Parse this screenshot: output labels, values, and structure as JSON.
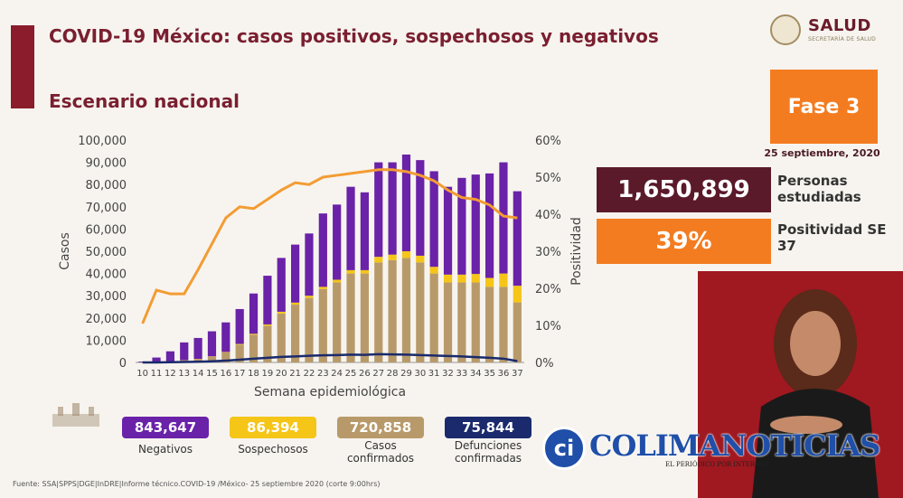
{
  "header": {
    "title": "COVID-19 México: casos positivos, sospechosos y negativos",
    "subtitle": "Escenario nacional"
  },
  "logo": {
    "word": "SALUD",
    "sub": "SECRETARÍA DE SALUD"
  },
  "phase": {
    "label": "Fase 3",
    "date": "25 septiembre, 2020"
  },
  "stats": {
    "estudiadas": {
      "value": "1,650,899",
      "label": "Personas estudiadas"
    },
    "positividad": {
      "value": "39%",
      "label": "Positividad SE 37"
    }
  },
  "summary": [
    {
      "value": "843,647",
      "label": "Negativos",
      "color": "#6a22a8"
    },
    {
      "value": "86,394",
      "label": "Sospechosos",
      "color": "#f5c518"
    },
    {
      "value": "720,858",
      "label": "Casos confirmados",
      "color": "#b89a6a"
    },
    {
      "value": "75,844",
      "label": "Defunciones confirmadas",
      "color": "#1a2a6c"
    }
  ],
  "footer": "Fuente: SSA|SPPS|DGE|InDRE|Informe técnico.COVID-19 /México- 25 septiembre 2020 (corte 9:00hrs)",
  "watermark": {
    "text": "COLIMANOTICIAS",
    "circle": "ci",
    "sub": "EL PERIÓDICO POR INTERNET"
  },
  "chart_data": {
    "type": "bar",
    "stacked": true,
    "xlabel": "Semana epidemiológica",
    "ylabel": "Casos",
    "y2label": "Positividad",
    "ylim": [
      0,
      100000
    ],
    "y2lim": [
      0,
      60
    ],
    "yticks": [
      "0",
      "10,000",
      "20,000",
      "30,000",
      "40,000",
      "50,000",
      "60,000",
      "70,000",
      "80,000",
      "90,000",
      "100,000"
    ],
    "y2ticks": [
      "0%",
      "10%",
      "20%",
      "30%",
      "40%",
      "50%",
      "60%"
    ],
    "categories": [
      "10",
      "11",
      "12",
      "13",
      "14",
      "15",
      "16",
      "17",
      "18",
      "19",
      "20",
      "21",
      "22",
      "23",
      "24",
      "25",
      "26",
      "27",
      "28",
      "29",
      "30",
      "31",
      "32",
      "33",
      "34",
      "35",
      "36",
      "37"
    ],
    "series": [
      {
        "name": "Casos confirmados",
        "color": "#b89a6a",
        "values": [
          100,
          400,
          600,
          900,
          1500,
          2500,
          4500,
          8000,
          12500,
          16500,
          22000,
          26000,
          29000,
          33000,
          36000,
          40000,
          40000,
          45000,
          46000,
          47000,
          45000,
          40000,
          36000,
          36000,
          36000,
          34000,
          34000,
          27000
        ]
      },
      {
        "name": "Sospechosos",
        "color": "#f5c518",
        "values": [
          0,
          0,
          0,
          100,
          100,
          200,
          200,
          300,
          400,
          600,
          800,
          900,
          1000,
          1000,
          1200,
          1500,
          1500,
          2500,
          2500,
          3000,
          3000,
          3000,
          3500,
          3500,
          3800,
          4000,
          6000,
          7500
        ]
      },
      {
        "name": "Negativos",
        "color": "#6a22a8",
        "values": [
          300,
          1800,
          4400,
          8000,
          9400,
          11300,
          13300,
          15700,
          18100,
          21900,
          24200,
          26100,
          28000,
          33000,
          33800,
          37500,
          35000,
          42500,
          41500,
          43500,
          43000,
          43000,
          39500,
          43500,
          44700,
          47000,
          50000,
          42500
        ]
      },
      {
        "name": "Defunciones confirmadas",
        "color": "#1a2a6c",
        "values": [
          0,
          0,
          100,
          200,
          300,
          500,
          800,
          1200,
          1700,
          2100,
          2500,
          2700,
          3000,
          3200,
          3300,
          3500,
          3400,
          3700,
          3600,
          3500,
          3300,
          3100,
          2900,
          2700,
          2400,
          2100,
          1700,
          600
        ]
      }
    ],
    "line": {
      "name": "Positividad",
      "color": "#f39c33",
      "axis": "y2",
      "values": [
        10.5,
        19.5,
        18.5,
        18.5,
        25,
        32,
        39,
        42,
        41.5,
        44,
        46.5,
        48.5,
        48,
        50,
        50.5,
        51,
        51.5,
        52,
        52,
        51.5,
        50.5,
        49,
        46.5,
        44.5,
        44,
        42.5,
        39.5,
        39
      ]
    },
    "grid": false,
    "legend": "bottom"
  }
}
